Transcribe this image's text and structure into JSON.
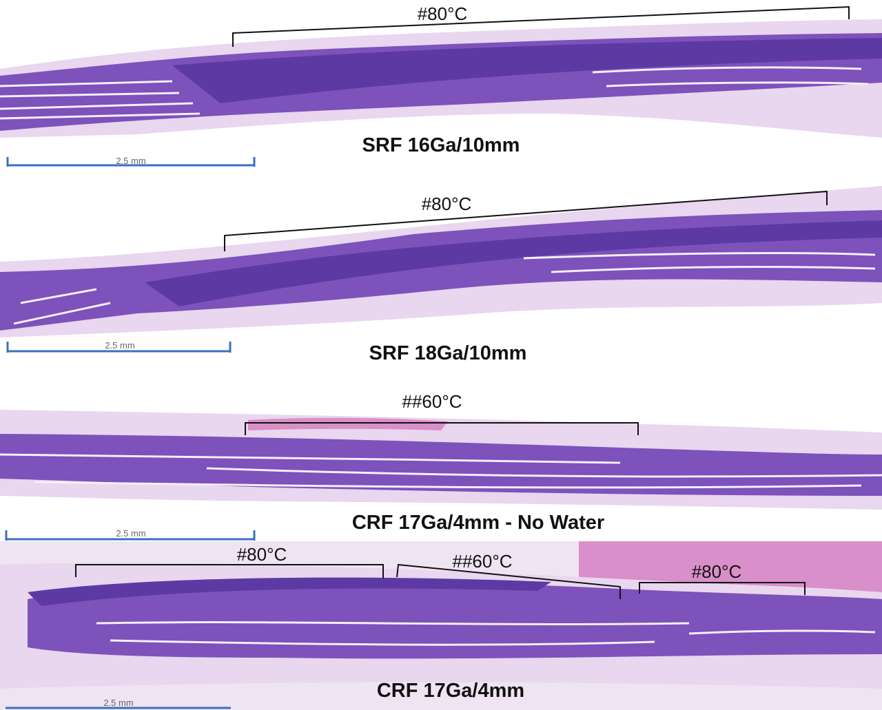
{
  "panels": [
    {
      "annotations": [
        "#80°C"
      ],
      "scale_bar": "2.5 mm",
      "label": "SRF 16Ga/10mm"
    },
    {
      "annotations": [
        "#80°C"
      ],
      "scale_bar": "2.5 mm",
      "label": "SRF 18Ga/10mm"
    },
    {
      "annotations": [
        "##60°C"
      ],
      "scale_bar": "2.5 mm",
      "label": "CRF 17Ga/4mm - No Water"
    },
    {
      "annotations": [
        "#80°C",
        "##60°C",
        "#80°C"
      ],
      "scale_bar": "2.5 mm",
      "label": "CRF 17Ga/4mm"
    }
  ]
}
